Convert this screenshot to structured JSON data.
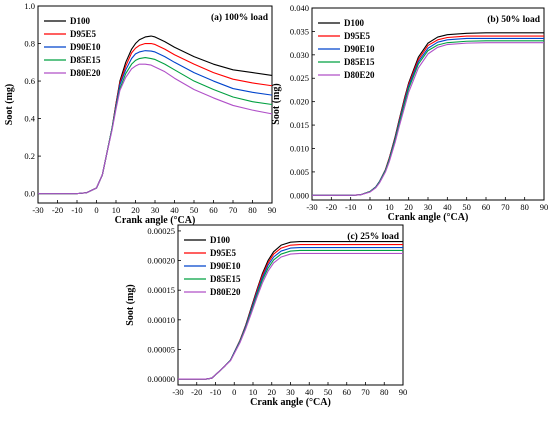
{
  "figure": {
    "series_names": [
      "D100",
      "D95E5",
      "D90E10",
      "D85E15",
      "D80E20"
    ],
    "series_colors": [
      "#000000",
      "#ff0000",
      "#0044cc",
      "#00a040",
      "#b050c8"
    ]
  },
  "chart_data": [
    {
      "type": "line",
      "title": "(a) 100% load",
      "xlabel": "Crank angle (°CA)",
      "ylabel": "Soot (mg)",
      "xlim": [
        -30,
        90
      ],
      "ylim": [
        -0.05,
        1.0
      ],
      "xticks": [
        -30,
        -20,
        -10,
        0,
        10,
        20,
        30,
        40,
        50,
        60,
        70,
        80,
        90
      ],
      "yticks": [
        0.0,
        0.2,
        0.4,
        0.6,
        0.8,
        1.0
      ],
      "ytick_labels": [
        "0.0",
        "0.2",
        "0.4",
        "0.6",
        "0.8",
        "1.0"
      ],
      "legend_position": "top-left",
      "x": [
        -30,
        -20,
        -10,
        -5,
        0,
        3,
        5,
        8,
        10,
        12,
        15,
        18,
        20,
        22,
        25,
        28,
        30,
        35,
        40,
        50,
        60,
        70,
        80,
        90
      ],
      "series": [
        {
          "name": "D100",
          "values": [
            0.0,
            0.0,
            0.0,
            0.005,
            0.03,
            0.1,
            0.2,
            0.35,
            0.48,
            0.6,
            0.7,
            0.77,
            0.8,
            0.82,
            0.835,
            0.84,
            0.835,
            0.81,
            0.78,
            0.73,
            0.69,
            0.66,
            0.645,
            0.63
          ]
        },
        {
          "name": "D95E5",
          "values": [
            0.0,
            0.0,
            0.0,
            0.005,
            0.03,
            0.1,
            0.2,
            0.35,
            0.48,
            0.59,
            0.68,
            0.75,
            0.775,
            0.79,
            0.8,
            0.8,
            0.795,
            0.77,
            0.74,
            0.69,
            0.645,
            0.61,
            0.59,
            0.575
          ]
        },
        {
          "name": "D90E10",
          "values": [
            0.0,
            0.0,
            0.0,
            0.005,
            0.03,
            0.1,
            0.2,
            0.35,
            0.47,
            0.58,
            0.66,
            0.72,
            0.745,
            0.755,
            0.762,
            0.76,
            0.755,
            0.73,
            0.7,
            0.645,
            0.6,
            0.56,
            0.54,
            0.525
          ]
        },
        {
          "name": "D85E15",
          "values": [
            0.0,
            0.0,
            0.0,
            0.005,
            0.03,
            0.1,
            0.2,
            0.35,
            0.46,
            0.56,
            0.64,
            0.69,
            0.71,
            0.72,
            0.725,
            0.72,
            0.715,
            0.69,
            0.66,
            0.6,
            0.555,
            0.515,
            0.49,
            0.475
          ]
        },
        {
          "name": "D80E20",
          "values": [
            0.0,
            0.0,
            0.0,
            0.005,
            0.03,
            0.1,
            0.2,
            0.34,
            0.45,
            0.55,
            0.62,
            0.665,
            0.68,
            0.69,
            0.69,
            0.685,
            0.675,
            0.65,
            0.615,
            0.555,
            0.51,
            0.47,
            0.445,
            0.425
          ]
        }
      ]
    },
    {
      "type": "line",
      "title": "(b) 50% load",
      "xlabel": "Crank angle (°CA)",
      "ylabel": "Soot (mg)",
      "xlim": [
        -30,
        90
      ],
      "ylim": [
        -0.001,
        0.04
      ],
      "xticks": [
        -30,
        -20,
        -10,
        0,
        10,
        20,
        30,
        40,
        50,
        60,
        70,
        80,
        90
      ],
      "yticks": [
        0.0,
        0.005,
        0.01,
        0.015,
        0.02,
        0.025,
        0.03,
        0.035,
        0.04
      ],
      "ytick_labels": [
        "0.000",
        "0.005",
        "0.010",
        "0.015",
        "0.020",
        "0.025",
        "0.030",
        "0.035",
        "0.040"
      ],
      "legend_position": "top-left",
      "x": [
        -30,
        -20,
        -10,
        -5,
        0,
        3,
        5,
        8,
        10,
        13,
        15,
        18,
        20,
        25,
        30,
        35,
        40,
        50,
        60,
        70,
        80,
        90
      ],
      "series": [
        {
          "name": "D100",
          "values": [
            0.0,
            0.0,
            0.0,
            0.0001,
            0.0008,
            0.0018,
            0.003,
            0.0055,
            0.008,
            0.0125,
            0.016,
            0.021,
            0.024,
            0.0295,
            0.0325,
            0.0338,
            0.0343,
            0.0346,
            0.0347,
            0.0347,
            0.0347,
            0.0347
          ]
        },
        {
          "name": "D95E5",
          "values": [
            0.0,
            0.0,
            0.0,
            0.0001,
            0.0008,
            0.0018,
            0.003,
            0.0055,
            0.008,
            0.0123,
            0.0158,
            0.0207,
            0.0237,
            0.029,
            0.032,
            0.0332,
            0.0337,
            0.034,
            0.034,
            0.034,
            0.034,
            0.034
          ]
        },
        {
          "name": "D90E10",
          "values": [
            0.0,
            0.0,
            0.0,
            0.0001,
            0.0008,
            0.0018,
            0.003,
            0.0054,
            0.0078,
            0.0121,
            0.0155,
            0.0203,
            0.0233,
            0.0285,
            0.0314,
            0.0327,
            0.0332,
            0.0335,
            0.0335,
            0.0335,
            0.0335,
            0.0335
          ]
        },
        {
          "name": "D85E15",
          "values": [
            0.0,
            0.0,
            0.0,
            0.0001,
            0.0008,
            0.0017,
            0.0029,
            0.0053,
            0.0076,
            0.0118,
            0.0151,
            0.0198,
            0.0228,
            0.028,
            0.0309,
            0.0321,
            0.0326,
            0.0329,
            0.033,
            0.033,
            0.033,
            0.033
          ]
        },
        {
          "name": "D80E20",
          "values": [
            0.0,
            0.0,
            0.0,
            0.0001,
            0.0007,
            0.0016,
            0.0027,
            0.005,
            0.0072,
            0.0113,
            0.0145,
            0.019,
            0.022,
            0.0272,
            0.0302,
            0.0316,
            0.0322,
            0.0325,
            0.0326,
            0.0326,
            0.0326,
            0.0326
          ]
        }
      ]
    },
    {
      "type": "line",
      "title": "(c) 25% load",
      "xlabel": "Crank angle (°CA)",
      "ylabel": "Soot (mg)",
      "xlim": [
        -30,
        90
      ],
      "ylim": [
        -1e-05,
        0.00026
      ],
      "xticks": [
        -30,
        -20,
        -10,
        0,
        10,
        20,
        30,
        40,
        50,
        60,
        70,
        80,
        90
      ],
      "yticks": [
        0.0,
        5e-05,
        0.0001,
        0.00015,
        0.0002,
        0.00025
      ],
      "ytick_labels": [
        "0.00000",
        "0.00005",
        "0.00010",
        "0.00015",
        "0.00020",
        "0.00025"
      ],
      "legend_position": "top-left",
      "x": [
        -30,
        -20,
        -15,
        -12,
        -8,
        -5,
        -2,
        0,
        3,
        6,
        9,
        12,
        15,
        18,
        21,
        25,
        30,
        35,
        40,
        50,
        60,
        70,
        80,
        90
      ],
      "series": [
        {
          "name": "D100",
          "values": [
            0.0,
            0.0,
            0.0,
            1.5e-06,
            1.3e-05,
            2.2e-05,
            3.2e-05,
            4.5e-05,
            6.5e-05,
            9e-05,
            0.00012,
            0.00015,
            0.000178,
            0.0002,
            0.000215,
            0.000226,
            0.000231,
            0.000232,
            0.000232,
            0.000232,
            0.000232,
            0.000232,
            0.000232,
            0.000232
          ]
        },
        {
          "name": "D95E5",
          "values": [
            0.0,
            0.0,
            0.0,
            1.5e-06,
            1.3e-05,
            2.2e-05,
            3.2e-05,
            4.5e-05,
            6.5e-05,
            8.9e-05,
            0.000118,
            0.000148,
            0.000175,
            0.000196,
            0.000211,
            0.000221,
            0.000226,
            0.000227,
            0.000227,
            0.000227,
            0.000227,
            0.000227,
            0.000227,
            0.000227
          ]
        },
        {
          "name": "D90E10",
          "values": [
            0.0,
            0.0,
            0.0,
            1.5e-06,
            1.3e-05,
            2.2e-05,
            3.2e-05,
            4.5e-05,
            6.4e-05,
            8.8e-05,
            0.000116,
            0.000145,
            0.000171,
            0.000192,
            0.000206,
            0.000216,
            0.000221,
            0.000222,
            0.000222,
            0.000222,
            0.000222,
            0.000222,
            0.000222,
            0.000222
          ]
        },
        {
          "name": "D85E15",
          "values": [
            0.0,
            0.0,
            0.0,
            1.5e-06,
            1.3e-05,
            2.2e-05,
            3.2e-05,
            4.4e-05,
            6.3e-05,
            8.6e-05,
            0.000113,
            0.000141,
            0.000167,
            0.000187,
            0.000201,
            0.000211,
            0.000216,
            0.000217,
            0.000217,
            0.000217,
            0.000217,
            0.000217,
            0.000217,
            0.000217
          ]
        },
        {
          "name": "D80E20",
          "values": [
            0.0,
            0.0,
            0.0,
            1.5e-06,
            1.3e-05,
            2.2e-05,
            3.1e-05,
            4.3e-05,
            6.1e-05,
            8.4e-05,
            0.00011,
            0.000137,
            0.000162,
            0.000182,
            0.000196,
            0.000206,
            0.000211,
            0.000212,
            0.000212,
            0.000212,
            0.000212,
            0.000212,
            0.000212,
            0.000212
          ]
        }
      ]
    }
  ]
}
